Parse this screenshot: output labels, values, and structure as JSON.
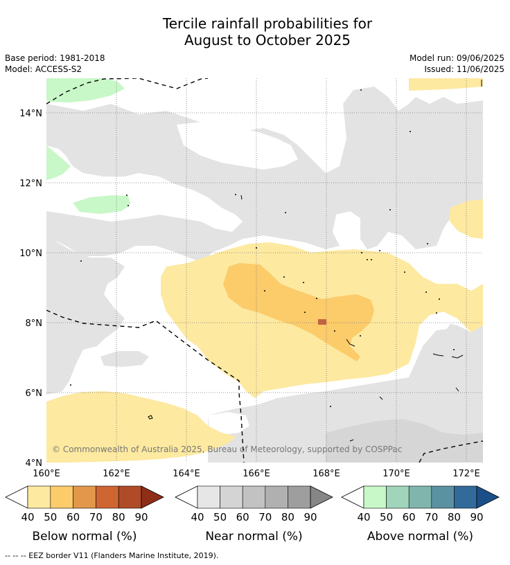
{
  "title_line1": "Tercile rainfall probabilities for",
  "title_line2": "August to October 2025",
  "meta": {
    "base_period": "Base period: 1981-2018",
    "model": "Model: ACCESS-S2",
    "model_run": "Model run: 09/06/2025",
    "issued": "Issued: 11/06/2025"
  },
  "map": {
    "lat_labels": [
      "14°N",
      "12°N",
      "10°N",
      "8°N",
      "6°N",
      "4°N"
    ],
    "lon_labels": [
      "160°E",
      "162°E",
      "164°E",
      "166°E",
      "168°E",
      "170°E",
      "172°E"
    ],
    "copyright": "© Commonwealth of Australia 2025, Bureau of Meteorology, supported by COSPPac",
    "colors": {
      "below_50": "#fde9a0",
      "below_60": "#fccb6a",
      "below_80": "#c06440",
      "near_40": "#e3e3e3",
      "near_50": "#d6d6d6",
      "above_40": "#c8f7c8",
      "grid": "#777777"
    }
  },
  "legends": [
    {
      "title": "Below normal (%)",
      "ticks": [
        "40",
        "50",
        "60",
        "70",
        "80",
        "90"
      ],
      "colors": [
        "#fde9a0",
        "#fccb6a",
        "#e2974b",
        "#cf6533",
        "#b04b28",
        "#8f2e17"
      ]
    },
    {
      "title": "Near normal (%)",
      "ticks": [
        "40",
        "50",
        "60",
        "70",
        "80",
        "90"
      ],
      "colors": [
        "#e6e6e6",
        "#d4d4d4",
        "#c2c2c2",
        "#b0b0b0",
        "#9e9e9e",
        "#868686"
      ]
    },
    {
      "title": "Above normal (%)",
      "ticks": [
        "40",
        "50",
        "60",
        "70",
        "80",
        "90"
      ],
      "colors": [
        "#c8f7c8",
        "#a1d5bb",
        "#7fb5ad",
        "#5b92a1",
        "#326a9a",
        "#1b4f8a"
      ]
    }
  ],
  "footnote": "--  --  -- EEZ border V11 (Flanders Marine Institute, 2019)."
}
